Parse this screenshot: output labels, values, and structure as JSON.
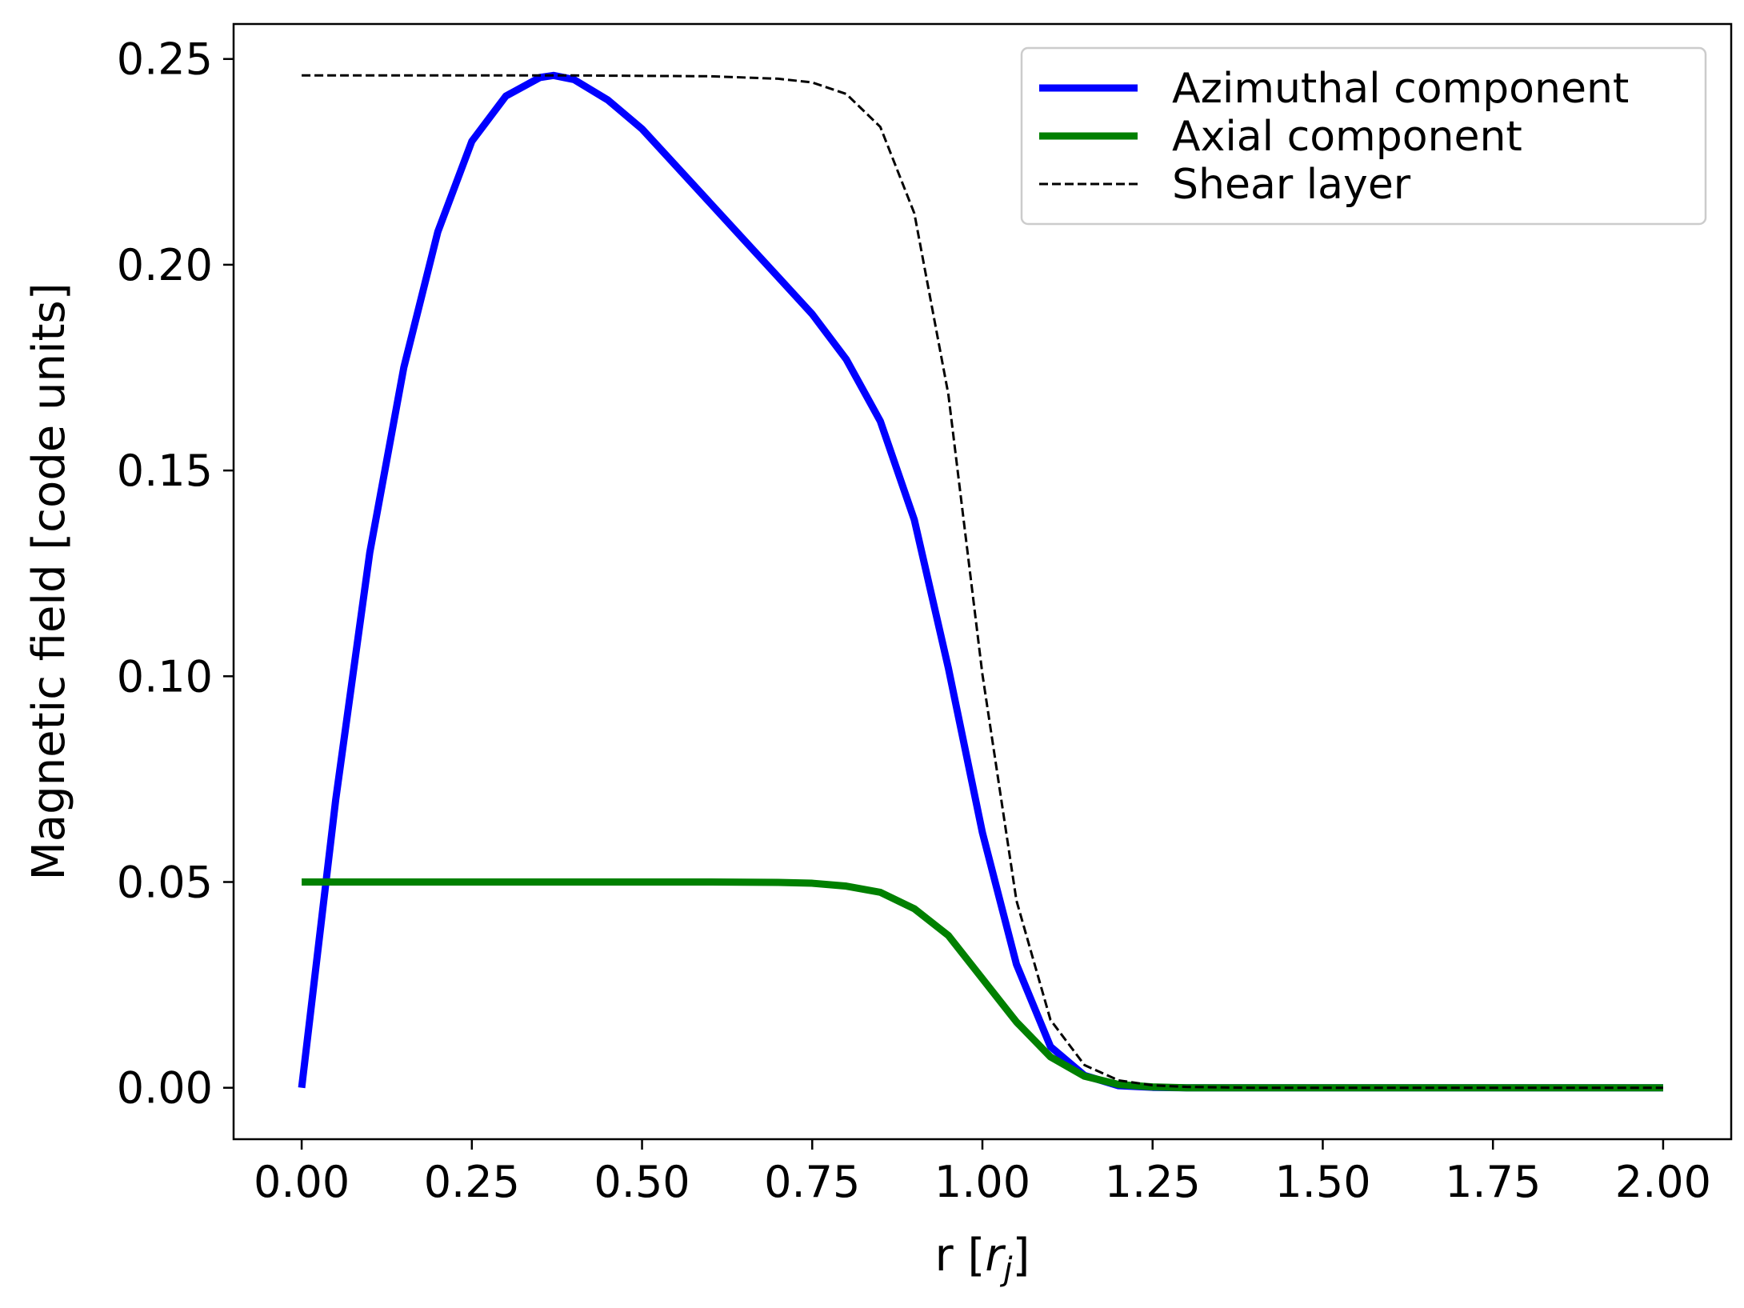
{
  "chart_data": {
    "type": "line",
    "title": "",
    "xlabel": "r [r_j]",
    "xlabel_parts": {
      "main": "r [",
      "var": "r",
      "sub": "j",
      "close": "]"
    },
    "ylabel": "Magnetic field [code units]",
    "xlim": [
      -0.1,
      2.1
    ],
    "ylim": [
      -0.0125,
      0.2585
    ],
    "xticks": [
      0.0,
      0.25,
      0.5,
      0.75,
      1.0,
      1.25,
      1.5,
      1.75,
      2.0
    ],
    "xtick_labels": [
      "0.00",
      "0.25",
      "0.50",
      "0.75",
      "1.00",
      "1.25",
      "1.50",
      "1.75",
      "2.00"
    ],
    "yticks": [
      0.0,
      0.05,
      0.1,
      0.15,
      0.2,
      0.25
    ],
    "ytick_labels": [
      "0.00",
      "0.05",
      "0.10",
      "0.15",
      "0.20",
      "0.25"
    ],
    "grid": false,
    "legend_position": "top-right",
    "series": [
      {
        "name": "Azimuthal component",
        "color": "#0000ff",
        "style": "solid",
        "x": [
          0.0,
          0.05,
          0.1,
          0.15,
          0.2,
          0.25,
          0.3,
          0.35,
          0.37,
          0.4,
          0.45,
          0.5,
          0.55,
          0.6,
          0.65,
          0.7,
          0.75,
          0.8,
          0.85,
          0.9,
          0.95,
          1.0,
          1.05,
          1.1,
          1.15,
          1.2,
          1.25,
          1.3,
          1.4,
          1.6,
          1.8,
          2.0
        ],
        "y": [
          0.0,
          0.07,
          0.13,
          0.175,
          0.208,
          0.23,
          0.241,
          0.2455,
          0.246,
          0.245,
          0.24,
          0.233,
          0.224,
          0.215,
          0.206,
          0.197,
          0.188,
          0.177,
          0.162,
          0.138,
          0.102,
          0.062,
          0.03,
          0.01,
          0.003,
          0.0005,
          0.0001,
          0.0,
          0.0,
          0.0,
          0.0,
          0.0
        ]
      },
      {
        "name": "Axial component",
        "color": "#008000",
        "style": "solid",
        "x": [
          0.0,
          0.2,
          0.4,
          0.6,
          0.7,
          0.75,
          0.8,
          0.85,
          0.9,
          0.95,
          1.0,
          1.05,
          1.1,
          1.15,
          1.2,
          1.25,
          1.3,
          1.4,
          1.6,
          1.8,
          2.0
        ],
        "y": [
          0.05,
          0.05,
          0.05,
          0.05,
          0.0499,
          0.0497,
          0.049,
          0.0475,
          0.0435,
          0.037,
          0.0265,
          0.016,
          0.0075,
          0.0028,
          0.0008,
          0.0002,
          0.0,
          0.0,
          0.0,
          0.0,
          0.0
        ]
      },
      {
        "name": "Shear layer",
        "color": "#000000",
        "style": "dashed",
        "x": [
          0.0,
          0.2,
          0.4,
          0.6,
          0.7,
          0.75,
          0.8,
          0.85,
          0.9,
          0.95,
          1.0,
          1.05,
          1.1,
          1.15,
          1.2,
          1.25,
          1.3,
          1.4,
          1.6,
          1.8,
          2.0
        ],
        "y": [
          0.246,
          0.246,
          0.246,
          0.2458,
          0.2452,
          0.2443,
          0.2415,
          0.2335,
          0.2125,
          0.1685,
          0.1005,
          0.0455,
          0.0165,
          0.0055,
          0.0018,
          0.0006,
          0.0002,
          0.0,
          0.0,
          0.0,
          0.0
        ]
      }
    ]
  }
}
